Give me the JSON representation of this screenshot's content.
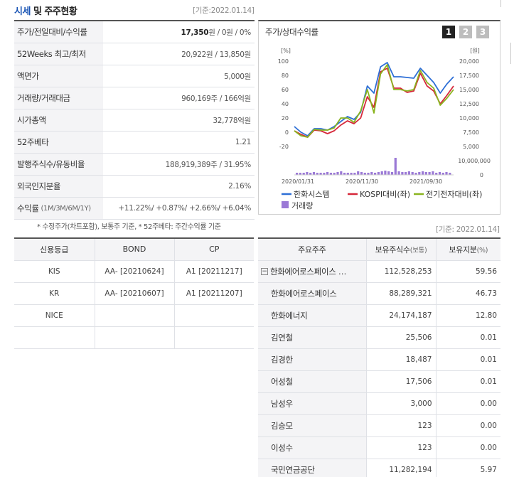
{
  "header": {
    "title_a": "시세",
    "title_b": " 및 주주현황",
    "date": "[기준:2022.01.14]"
  },
  "stats": [
    {
      "label": "주가/전일대비/수익률",
      "value_bold": "17,350",
      "value_rest": "원 / 0원 / 0%"
    },
    {
      "label": "52Weeks 최고/최저",
      "value": "20,922원 / 13,850원"
    },
    {
      "label": "액면가",
      "value": "5,000원"
    },
    {
      "label": "거래량/거래대금",
      "value": "960,169주 / 166억원"
    },
    {
      "label": "시가총액",
      "value": "32,778억원"
    },
    {
      "label": "52주베타",
      "value": "1.21"
    },
    {
      "label": "발행주식수/유동비율",
      "value": "188,919,389주 / 31.95%"
    },
    {
      "label": "외국인지분율",
      "value": "2.16%"
    },
    {
      "label": "수익률",
      "label_small": "(1M/3M/6M/1Y)",
      "value": "+11.22%/ +0.87%/ +2.66%/ +6.04%"
    }
  ],
  "note": "* 수정주가(차트포함), 보통주 기준, * 52주베타: 주간수익률 기준",
  "date2": "[기준: 2022.01.14]",
  "chart_panel": {
    "title": "주가/상대수익률",
    "tabs": [
      "1",
      "2",
      "3"
    ]
  },
  "chart_data": {
    "type": "line",
    "left_axis_unit": "[%]",
    "right_axis_unit": "[원]",
    "left_ticks": [
      "100",
      "80",
      "60",
      "40",
      "20",
      "0",
      "-20"
    ],
    "left_ylim": [
      -20,
      100
    ],
    "right_ticks": [
      "20,000",
      "17,500",
      "15,000",
      "12,500",
      "10,000",
      "7,500",
      "5,000"
    ],
    "volume_tick": "10,000,000",
    "volume_zero": "0",
    "x_ticks": [
      "2020/01/31",
      "2020/11/30",
      "2021/09/30"
    ],
    "series": [
      {
        "name": "한화시스템",
        "color": "#2e6fd6",
        "values": [
          8,
          0,
          -5,
          5,
          5,
          3,
          8,
          15,
          22,
          18,
          28,
          65,
          55,
          92,
          98,
          78,
          78,
          77,
          76,
          90,
          80,
          70,
          55,
          68,
          78
        ]
      },
      {
        "name": "KOSPI대비(좌)",
        "color": "#d6283a",
        "values": [
          2,
          -3,
          -7,
          3,
          2,
          -2,
          2,
          10,
          16,
          12,
          20,
          50,
          35,
          85,
          90,
          62,
          62,
          56,
          58,
          83,
          65,
          58,
          40,
          52,
          65
        ]
      },
      {
        "name": "전기전자대비(좌)",
        "color": "#8ab41f",
        "values": [
          2,
          -5,
          -7,
          4,
          3,
          3,
          6,
          20,
          20,
          14,
          30,
          60,
          27,
          82,
          95,
          60,
          60,
          58,
          60,
          87,
          70,
          62,
          38,
          48,
          60
        ]
      }
    ],
    "volume": [
      0.3,
      0.3,
      0.3,
      0.4,
      0.3,
      0.4,
      0.3,
      0.3,
      0.3,
      0.4,
      0.3,
      0.3,
      0.4,
      0.5,
      0.3,
      0.3,
      0.3,
      0.3,
      0.5,
      0.4,
      0.3,
      0.3,
      0.4,
      0.3,
      0.4,
      0.5,
      0.6,
      0.5,
      0.4,
      2.4,
      0.5,
      0.4,
      0.4,
      0.5,
      0.4,
      0.3,
      0.4,
      0.5,
      0.4,
      0.4,
      0.5,
      0.3,
      0.4,
      0.3,
      0.4,
      0.3
    ],
    "volume_name": "거래량",
    "volume_color": "#9b79d6"
  },
  "credit": {
    "headers": [
      "신용등급",
      "BOND",
      "CP"
    ],
    "rows": [
      [
        "KIS",
        "AA-  [20210624]",
        "A1  [20211217]"
      ],
      [
        "KR",
        "AA-  [20210607]",
        "A1  [20211207]"
      ],
      [
        "NICE",
        "",
        ""
      ],
      [
        "",
        "",
        ""
      ]
    ]
  },
  "holders": {
    "headers": [
      "주요주주",
      "보유주식수",
      "(보통)",
      "보유지분",
      "(%)"
    ],
    "toggle": "−",
    "rows": [
      {
        "name": "한화에어로스페이스 …",
        "shares": "112,528,253",
        "pct": "59.56"
      },
      {
        "name": "한화에어로스페이스",
        "shares": "88,289,321",
        "pct": "46.73"
      },
      {
        "name": "한화에너지",
        "shares": "24,174,187",
        "pct": "12.80"
      },
      {
        "name": "김연철",
        "shares": "25,506",
        "pct": "0.01"
      },
      {
        "name": "김경한",
        "shares": "18,487",
        "pct": "0.01"
      },
      {
        "name": "어성철",
        "shares": "17,506",
        "pct": "0.01"
      },
      {
        "name": "남성우",
        "shares": "3,000",
        "pct": "0.00"
      },
      {
        "name": "김승모",
        "shares": "123",
        "pct": "0.00"
      },
      {
        "name": "이성수",
        "shares": "123",
        "pct": "0.00"
      },
      {
        "name": "국민연금공단",
        "shares": "11,282,194",
        "pct": "5.97"
      }
    ]
  }
}
